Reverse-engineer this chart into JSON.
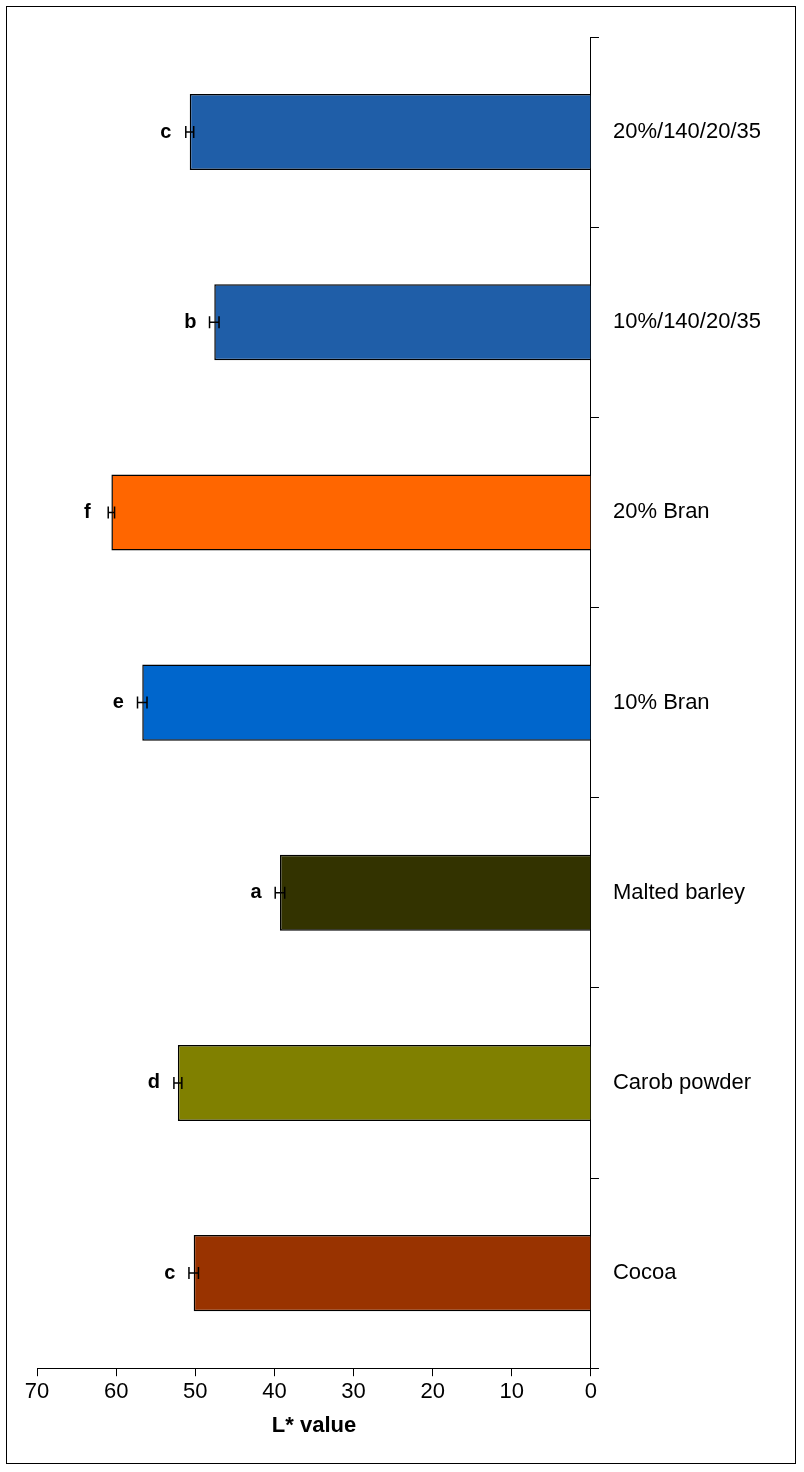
{
  "chart_data": {
    "type": "bar",
    "orientation": "horizontal",
    "xlabel": "L* value",
    "categories": [
      "20%/140/20/35",
      "10%/140/20/35",
      "20% Bran",
      "10% Bran",
      "Malted barley",
      "Carob powder",
      "Cocoa"
    ],
    "values": [
      50.7,
      47.6,
      60.6,
      56.7,
      39.3,
      52.2,
      50.2
    ],
    "errors": [
      0.5,
      0.6,
      0.4,
      0.6,
      0.6,
      0.5,
      0.6
    ],
    "colors": [
      "#1f5ea8",
      "#1f5ea8",
      "#ff6600",
      "#0066cc",
      "#333300",
      "#808000",
      "#993300"
    ],
    "xlim": [
      70,
      0
    ],
    "xticks": [
      0,
      10,
      20,
      30,
      40,
      50,
      60,
      70
    ],
    "grid": false,
    "annotations": [
      {
        "text": "c",
        "x": 50.7,
        "y": "20%/140/20/35"
      },
      {
        "text": "b",
        "x": 47.6,
        "y": "10%/140/20/35"
      },
      {
        "text": "f",
        "x": 60.6,
        "y": "20% Bran"
      },
      {
        "text": "e",
        "x": 56.7,
        "y": "10% Bran"
      },
      {
        "text": "a",
        "x": 39.3,
        "y": "Malted barley"
      },
      {
        "text": "d",
        "x": 52.2,
        "y": "Carob powder"
      },
      {
        "text": "c",
        "x": 50.2,
        "y": "Cocoa"
      }
    ]
  }
}
